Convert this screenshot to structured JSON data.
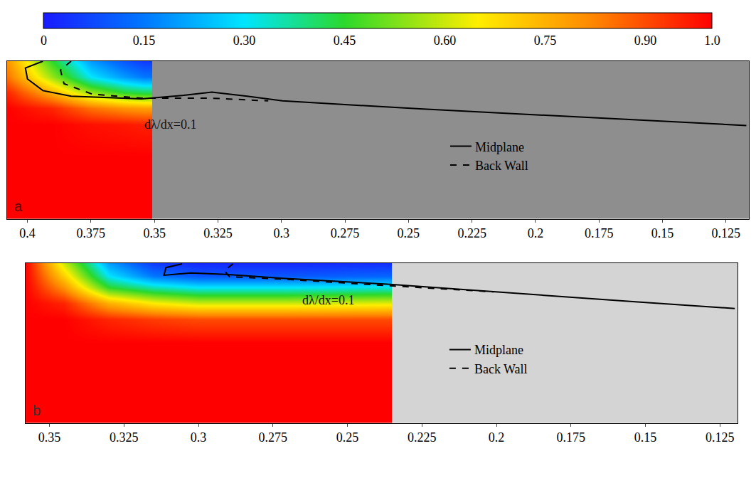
{
  "chart_data": {
    "type": "heatmap",
    "colorbar": {
      "range": [
        0,
        1
      ],
      "ticks": [
        0,
        0.15,
        {
          "value": 0.3,
          "label": "0.30"
        },
        0.45,
        {
          "value": 0.6,
          "label": "0.60"
        },
        0.75,
        {
          "value": 0.9,
          "label": "0.90"
        },
        {
          "value": 1,
          "label": "1.0"
        }
      ]
    },
    "panels": [
      {
        "label": "a",
        "annotations": [
          "dλ/dx=0.1"
        ],
        "legend": "center",
        "tick_labels": "x",
        "grid": false,
        "xlim": [
          0.408,
          0.116
        ],
        "xticks": [
          0.4,
          0.375,
          0.35,
          0.325,
          0.3,
          0.275,
          0.25,
          0.225,
          0.2,
          0.175,
          0.15,
          0.125
        ],
        "ylim": [
          0,
          1
        ],
        "cells": {
          "x": [
            0.408,
            0.39,
            0.375,
            0.362,
            0.354,
            0.352
          ],
          "y": [
            0,
            0.2,
            0.4,
            0.6,
            0.7,
            0.8,
            0.9,
            1.0
          ],
          "z": [
            [
              1,
              1,
              1,
              1,
              1,
              1
            ],
            [
              1,
              1,
              1,
              1,
              1,
              1
            ],
            [
              1,
              1,
              1,
              1,
              1,
              1
            ],
            [
              1,
              1,
              0.98,
              0.97,
              0.96,
              0.96
            ],
            [
              1,
              0.95,
              0.85,
              0.8,
              0.78,
              0.78
            ],
            [
              0.95,
              0.75,
              0.55,
              0.45,
              0.42,
              0.42
            ],
            [
              0.85,
              0.55,
              0.3,
              0.2,
              0.15,
              0.15
            ],
            [
              0.8,
              0.45,
              0.2,
              0.1,
              0.05,
              0.05
            ]
          ]
        },
        "series": [
          {
            "name": "Midplane",
            "type": "line",
            "color": "#000000",
            "line_style": "solid",
            "x": [
              0.3939,
              0.4008,
              0.4,
              0.3939,
              0.3828,
              0.3551,
              0.3385,
              0.3274,
              0.3135,
              0.2996,
              0.2442,
              0.1887,
              0.117
            ],
            "values": [
              1.0,
              0.957,
              0.887,
              0.813,
              0.778,
              0.761,
              0.783,
              0.804,
              0.778,
              0.748,
              0.696,
              0.652,
              0.592
            ]
          },
          {
            "name": "Back Wall",
            "type": "line",
            "color": "#000000",
            "line_style": "dashed",
            "x": [
              0.3828,
              0.387,
              0.3856,
              0.3745,
              0.3551,
              0.3274,
              0.3052
            ],
            "values": [
              1.0,
              0.943,
              0.857,
              0.791,
              0.765,
              0.765,
              0.748
            ]
          }
        ]
      },
      {
        "label": "b",
        "annotations": [
          "dλ/dx=0.1"
        ],
        "legend": "center",
        "tick_labels": "x",
        "grid": false,
        "xlim": [
          0.358,
          0.119
        ],
        "xticks": [
          0.35,
          0.325,
          0.3,
          0.275,
          0.25,
          0.225,
          0.2,
          0.175,
          0.15,
          0.125
        ],
        "ylim": [
          0,
          1
        ],
        "cells": {
          "x": [
            0.358,
            0.345,
            0.33,
            0.315,
            0.3,
            0.27,
            0.238,
            0.236
          ],
          "y": [
            0,
            0.5,
            0.65,
            0.75,
            0.85,
            0.92,
            1.0
          ],
          "z": [
            [
              1,
              1,
              1,
              1,
              1,
              1,
              1,
              1
            ],
            [
              1,
              1,
              1,
              1,
              1,
              1,
              1,
              1
            ],
            [
              1,
              1,
              0.95,
              0.92,
              0.9,
              0.9,
              0.9,
              0.9
            ],
            [
              1,
              0.95,
              0.75,
              0.65,
              0.6,
              0.6,
              0.62,
              0.62
            ],
            [
              1,
              0.8,
              0.45,
              0.35,
              0.3,
              0.3,
              0.32,
              0.32
            ],
            [
              1,
              0.7,
              0.3,
              0.15,
              0.1,
              0.1,
              0.12,
              0.12
            ],
            [
              1,
              0.6,
              0.2,
              0.05,
              0.02,
              0.02,
              0.03,
              0.03
            ]
          ]
        },
        "series": [
          {
            "name": "Midplane",
            "type": "line",
            "color": "#000000",
            "line_style": "solid",
            "x": [
              0.3055,
              0.3109,
              0.3116,
              0.3026,
              0.2908,
              0.2718,
              0.2356,
              0.2008,
              0.1534,
              0.12
            ],
            "values": [
              0.995,
              0.972,
              0.924,
              0.938,
              0.929,
              0.905,
              0.867,
              0.82,
              0.758,
              0.716
            ]
          },
          {
            "name": "Back Wall",
            "type": "line",
            "color": "#000000",
            "line_style": "dashed",
            "x": [
              0.2884,
              0.2913,
              0.2896,
              0.2718,
              0.2356,
              0.2008
            ],
            "values": [
              0.995,
              0.953,
              0.915,
              0.9,
              0.858,
              0.82
            ]
          }
        ]
      }
    ]
  }
}
